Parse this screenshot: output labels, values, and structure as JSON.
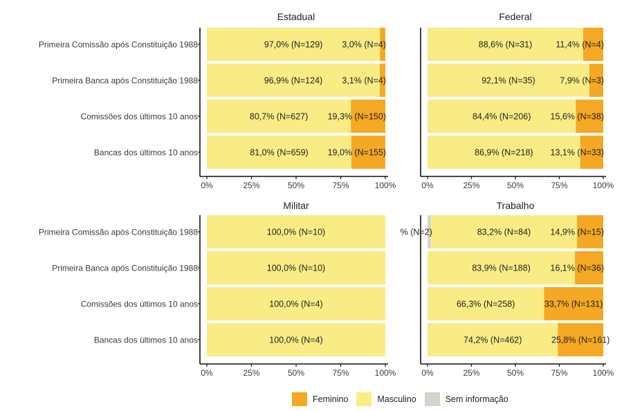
{
  "chart_data": {
    "type": "bar",
    "orientation": "horizontal",
    "stacked": true,
    "categories": [
      "Primeira Comissão após Constituição 1988",
      "Primeira Banca após Constituição 1988",
      "Comissões dos últimos 10 anos",
      "Bancas dos últimos 10 anos"
    ],
    "x_ticks": [
      "0%",
      "25%",
      "50%",
      "75%",
      "100%"
    ],
    "xlim": [
      0,
      1
    ],
    "colors": {
      "Feminino": "#f5a823",
      "Masculino": "#f9ec85",
      "Sem informação": "#d5d4cb"
    },
    "legend": {
      "position": "bottom",
      "entries": [
        "Feminino",
        "Masculino",
        "Sem informação"
      ]
    },
    "panels": [
      {
        "title": "Estadual",
        "bars": [
          {
            "segments": [
              {
                "series": "Masculino",
                "value": 0.97,
                "label": "97,0% (N=129)"
              },
              {
                "series": "Feminino",
                "value": 0.03,
                "label": "3,0% (N=4)"
              }
            ]
          },
          {
            "segments": [
              {
                "series": "Masculino",
                "value": 0.969,
                "label": "96,9% (N=124)"
              },
              {
                "series": "Feminino",
                "value": 0.031,
                "label": "3,1% (N=4)"
              }
            ]
          },
          {
            "segments": [
              {
                "series": "Masculino",
                "value": 0.807,
                "label": "80,7% (N=627)"
              },
              {
                "series": "Feminino",
                "value": 0.193,
                "label": "19,3% (N=150)"
              }
            ]
          },
          {
            "segments": [
              {
                "series": "Masculino",
                "value": 0.81,
                "label": "81,0% (N=659)"
              },
              {
                "series": "Feminino",
                "value": 0.19,
                "label": "19,0% (N=155)"
              }
            ]
          }
        ]
      },
      {
        "title": "Federal",
        "bars": [
          {
            "segments": [
              {
                "series": "Masculino",
                "value": 0.886,
                "label": "88,6% (N=31)"
              },
              {
                "series": "Feminino",
                "value": 0.114,
                "label": "11,4% (N=4)"
              }
            ]
          },
          {
            "segments": [
              {
                "series": "Masculino",
                "value": 0.921,
                "label": "92,1% (N=35)"
              },
              {
                "series": "Feminino",
                "value": 0.079,
                "label": "7,9% (N=3)"
              }
            ]
          },
          {
            "segments": [
              {
                "series": "Masculino",
                "value": 0.844,
                "label": "84,4% (N=206)"
              },
              {
                "series": "Feminino",
                "value": 0.156,
                "label": "15,6% (N=38)"
              }
            ]
          },
          {
            "segments": [
              {
                "series": "Masculino",
                "value": 0.869,
                "label": "86,9% (N=218)"
              },
              {
                "series": "Feminino",
                "value": 0.131,
                "label": "13,1% (N=33)"
              }
            ]
          }
        ]
      },
      {
        "title": "Militar",
        "bars": [
          {
            "segments": [
              {
                "series": "Masculino",
                "value": 1.0,
                "label": "100,0% (N=10)"
              }
            ]
          },
          {
            "segments": [
              {
                "series": "Masculino",
                "value": 1.0,
                "label": "100,0% (N=10)"
              }
            ]
          },
          {
            "segments": [
              {
                "series": "Masculino",
                "value": 1.0,
                "label": "100,0% (N=4)"
              }
            ]
          },
          {
            "segments": [
              {
                "series": "Masculino",
                "value": 1.0,
                "label": "100,0% (N=4)"
              }
            ]
          }
        ]
      },
      {
        "title": "Trabalho",
        "bars": [
          {
            "segments": [
              {
                "series": "Sem informação",
                "value": 0.019,
                "label": "% (N=2)"
              },
              {
                "series": "Masculino",
                "value": 0.832,
                "label": "83,2% (N=84)"
              },
              {
                "series": "Feminino",
                "value": 0.149,
                "label": "14,9% (N=15)"
              }
            ]
          },
          {
            "segments": [
              {
                "series": "Masculino",
                "value": 0.839,
                "label": "83,9% (N=188)"
              },
              {
                "series": "Feminino",
                "value": 0.161,
                "label": "16,1% (N=36)"
              }
            ]
          },
          {
            "segments": [
              {
                "series": "Masculino",
                "value": 0.663,
                "label": "66,3% (N=258)"
              },
              {
                "series": "Feminino",
                "value": 0.337,
                "label": "33,7% (N=131)"
              }
            ]
          },
          {
            "segments": [
              {
                "series": "Masculino",
                "value": 0.742,
                "label": "74,2% (N=462)"
              },
              {
                "series": "Feminino",
                "value": 0.258,
                "label": "25,8% (N=161)"
              }
            ]
          }
        ]
      }
    ]
  }
}
